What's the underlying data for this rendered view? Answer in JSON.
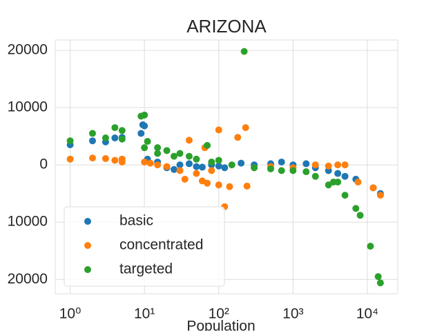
{
  "chart_data": {
    "type": "scatter",
    "title": "ARIZONA",
    "x_label": "Population",
    "log_x": true,
    "grid": true,
    "legend": "lower left",
    "xlim": [
      0.63,
      25700
    ],
    "ylim": [
      -22500,
      21800
    ],
    "xticks": [
      {
        "value": 1,
        "label": "10⁰"
      },
      {
        "value": 10,
        "label": "10¹"
      },
      {
        "value": 100,
        "label": "10²"
      },
      {
        "value": 1000,
        "label": "10³"
      },
      {
        "value": 10000,
        "label": "10⁴"
      }
    ],
    "yticks": [
      {
        "value": -20000,
        "label": "20000"
      },
      {
        "value": -10000,
        "label": "10000"
      },
      0,
      10000,
      20000
    ],
    "series": [
      {
        "name": "basic",
        "color": "#1f77b4",
        "x": [
          1,
          2,
          3,
          4,
          5,
          9,
          9.5,
          10,
          11,
          15,
          20,
          25,
          30,
          40,
          50,
          60,
          80,
          100,
          120,
          200,
          300,
          500,
          700,
          1000,
          1500,
          2000,
          3000,
          4000,
          5000,
          7000,
          12000,
          15000
        ],
        "values": [
          3500,
          4200,
          4000,
          4700,
          4800,
          5500,
          7000,
          6800,
          1000,
          500,
          -500,
          -800,
          0,
          200,
          -300,
          -400,
          0,
          -200,
          -500,
          300,
          0,
          200,
          500,
          0,
          200,
          -500,
          -1000,
          -1500,
          -2000,
          -2500,
          -4000,
          -5000
        ]
      },
      {
        "name": "concentrated",
        "color": "#ff7f0e",
        "x": [
          1,
          2,
          3,
          4,
          5,
          5,
          10,
          12,
          15,
          20,
          30,
          35,
          40,
          50,
          60,
          65,
          70,
          80,
          100,
          100,
          120,
          140,
          180,
          230,
          240,
          300,
          500,
          1000,
          2000,
          3000,
          4000,
          5000,
          7500,
          12000,
          15000
        ],
        "values": [
          1000,
          1200,
          1100,
          800,
          1000,
          500,
          500,
          300,
          0,
          -300,
          -1000,
          -2500,
          4300,
          -1500,
          -2800,
          3000,
          -3200,
          -1000,
          -3500,
          6100,
          -7300,
          -3800,
          4800,
          6500,
          -3700,
          -500,
          -300,
          -500,
          0,
          -200,
          0,
          0,
          -3000,
          -4000,
          -5300
        ]
      },
      {
        "name": "targeted",
        "color": "#2ca02c",
        "x": [
          1,
          2,
          3,
          4,
          5,
          5,
          9,
          10,
          10,
          11,
          15,
          15,
          20,
          25,
          30,
          40,
          50,
          70,
          80,
          100,
          150,
          220,
          300,
          500,
          700,
          1000,
          1500,
          2000,
          3000,
          3500,
          4000,
          5000,
          7000,
          8000,
          11000,
          14000,
          15000
        ],
        "values": [
          4200,
          5500,
          4700,
          6500,
          6000,
          4500,
          8500,
          8700,
          3000,
          4100,
          2000,
          3000,
          2500,
          1500,
          2000,
          1500,
          1000,
          3400,
          500,
          800,
          0,
          19800,
          -500,
          -700,
          -1000,
          -1000,
          -1200,
          -2000,
          -3500,
          -3000,
          -3000,
          -5300,
          -7600,
          -8800,
          -14200,
          -19500,
          -20600
        ]
      }
    ]
  }
}
